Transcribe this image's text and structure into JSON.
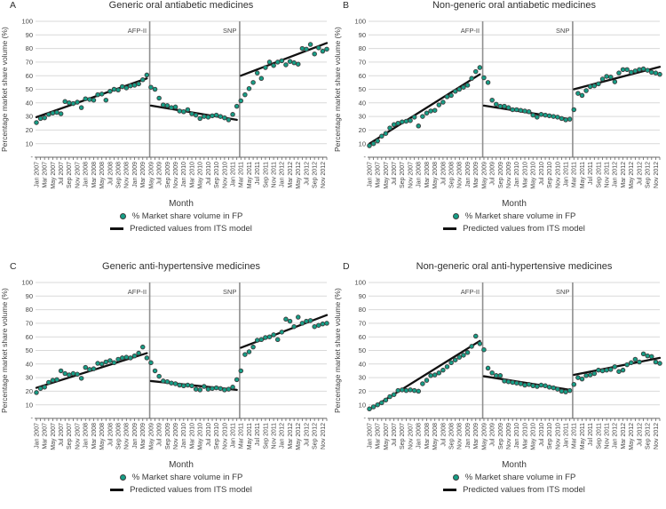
{
  "figure": {
    "colors": {
      "dot_fill": "#169f87",
      "dot_stroke": "#3d3d3d",
      "fit_line": "#111111",
      "event_line": "#8f8f8f",
      "gridline": "#d9d9d9",
      "axis_line": "#666666",
      "text": "#3a3a3a"
    }
  },
  "chart_data": {
    "common": {
      "type": "scatter",
      "xlabel": "Month",
      "ylabel": "Percentage market share volume (%)",
      "ylim": [
        0,
        100
      ],
      "y_ticks": [
        100,
        90,
        80,
        70,
        60,
        50,
        40,
        30,
        20,
        10
      ],
      "y_zero_tick_label": "-",
      "grid": "horizontal",
      "n_months": 72,
      "x_range": [
        "Jan 2007",
        "Dec 2012"
      ],
      "x_tick_labels": [
        "Jan 2007",
        "Mar 2007",
        "May 2007",
        "Jul 2007",
        "Sep 2007",
        "Nov 2007",
        "Jan 2008",
        "Mar 2008",
        "May 2008",
        "Jul 2008",
        "Sep 2008",
        "Nov 2008",
        "Jan 2009",
        "Mar 2009",
        "May 2009",
        "Jul 2009",
        "Sep 2009",
        "Nov 2009",
        "Jan 2010",
        "Mar 2010",
        "May 2010",
        "Jul 2010",
        "Sep 2010",
        "Nov 2010",
        "Jan 2011",
        "Mar 2011",
        "May 2011",
        "Jul 2011",
        "Sep 2011",
        "Nov 2011",
        "Jan 2012",
        "Mar 2012",
        "May 2012",
        "Jul 2012",
        "Sep 2012",
        "Nov 2012"
      ],
      "events": [
        {
          "label": "AFP-II",
          "position_month_index": 27.7
        },
        {
          "label": "SNP",
          "position_month_index": 49.7
        }
      ],
      "legend": [
        {
          "marker": "dot",
          "label": "% Market share volume in FP"
        },
        {
          "marker": "line",
          "label": "Predicted values from ITS model"
        }
      ],
      "legend_position": "bottom-center"
    },
    "panels": [
      {
        "panel_label": "A",
        "title": "Generic oral antiabetic medicines",
        "observed_percent": [
          25.5,
          28.5,
          29,
          31.5,
          32.5,
          33,
          32,
          41,
          40,
          39.5,
          40.5,
          36.5,
          43,
          42.5,
          42,
          46,
          46.5,
          42,
          48.5,
          50,
          49.5,
          52,
          51,
          52.5,
          53,
          54,
          57,
          60.5,
          51.5,
          50,
          43.5,
          38.5,
          38,
          36.5,
          37,
          34,
          33.5,
          35,
          32,
          31,
          28.5,
          30,
          29.5,
          30.5,
          31,
          30,
          29,
          27.5,
          31.5,
          37.5,
          41.5,
          46,
          50.5,
          55,
          62,
          58,
          66,
          70,
          67.5,
          70,
          71,
          68,
          70.5,
          69.5,
          68.5,
          80,
          79.5,
          83,
          76,
          80.5,
          78,
          79.5
        ],
        "fit_segments": [
          [
            0,
            29.5,
            27,
            58
          ],
          [
            28,
            38,
            49,
            27.5
          ],
          [
            50,
            60,
            71,
            84
          ]
        ]
      },
      {
        "panel_label": "B",
        "title": "Non-generic oral antiabetic medicines",
        "observed_percent": [
          8.5,
          10,
          12,
          15.5,
          17.5,
          21.5,
          24,
          25,
          26,
          26.5,
          27,
          29.5,
          23,
          30,
          32.5,
          34,
          34.5,
          38.5,
          40.5,
          44.5,
          45.5,
          48.5,
          50,
          51.5,
          53,
          58,
          63,
          66,
          58.5,
          55,
          42,
          39,
          37.5,
          37.5,
          36.5,
          35,
          35,
          34.5,
          34,
          33.5,
          31,
          29.5,
          31.5,
          31,
          30.5,
          30,
          29.5,
          28.5,
          27.5,
          28,
          35,
          47,
          45.5,
          49,
          52,
          52.5,
          54,
          57.5,
          59.5,
          59,
          55.5,
          62,
          64.5,
          64.5,
          62.5,
          63.5,
          64.5,
          65,
          64,
          62.5,
          62,
          61
        ],
        "fit_segments": [
          [
            0,
            10,
            27,
            61
          ],
          [
            28,
            38,
            49,
            28
          ],
          [
            50,
            50,
            71,
            66.5
          ]
        ]
      },
      {
        "panel_label": "C",
        "title": "Generic anti-hypertensive medicines",
        "observed_percent": [
          19,
          22,
          23,
          26.5,
          28,
          28.5,
          35,
          33,
          32,
          33,
          32.5,
          29.5,
          37.5,
          36,
          36.5,
          40.5,
          40,
          41.5,
          42.5,
          41,
          43.5,
          44.5,
          45,
          44.5,
          46,
          48,
          52.5,
          44.5,
          41,
          35,
          31,
          27.5,
          27,
          26,
          25.5,
          24.5,
          24,
          24.5,
          24,
          21.5,
          21,
          23.5,
          21.5,
          22,
          22.5,
          22,
          21,
          21.5,
          23,
          28.5,
          35,
          47,
          49,
          52.5,
          57.5,
          58,
          59.5,
          60,
          61.5,
          58,
          63.5,
          73,
          71.5,
          67.5,
          74.5,
          70,
          71.5,
          72,
          67.5,
          68.5,
          69.5,
          70
        ],
        "fit_segments": [
          [
            0,
            22.5,
            27,
            48
          ],
          [
            28,
            27.5,
            49,
            21
          ],
          [
            50,
            52,
            71,
            76
          ]
        ]
      },
      {
        "panel_label": "D",
        "title": "Non-generic oral anti-hypertensive medicines",
        "observed_percent": [
          7,
          8.5,
          10,
          11.5,
          13.5,
          16,
          17.5,
          20.5,
          21,
          20.5,
          21,
          20.5,
          20,
          25.5,
          28,
          31.5,
          32,
          33.5,
          35.5,
          38,
          41,
          43,
          45,
          46.5,
          48.5,
          53,
          60.5,
          55,
          50.5,
          37,
          33.5,
          31.5,
          31.5,
          27.5,
          27,
          26.5,
          26,
          25.5,
          24.5,
          25,
          24,
          23.5,
          24.5,
          24,
          23,
          22.5,
          21.5,
          20,
          19.5,
          20.5,
          25,
          30,
          29,
          31.5,
          32,
          33,
          35.5,
          35,
          35.5,
          36,
          38,
          34.5,
          35.5,
          39.5,
          41,
          43.5,
          41.5,
          47.5,
          46,
          45.5,
          41.5,
          40.5
        ],
        "fit_segments": [
          [
            0,
            6.5,
            27,
            57
          ],
          [
            28,
            31,
            49,
            21
          ],
          [
            50,
            32,
            71,
            44.5
          ]
        ]
      }
    ]
  }
}
